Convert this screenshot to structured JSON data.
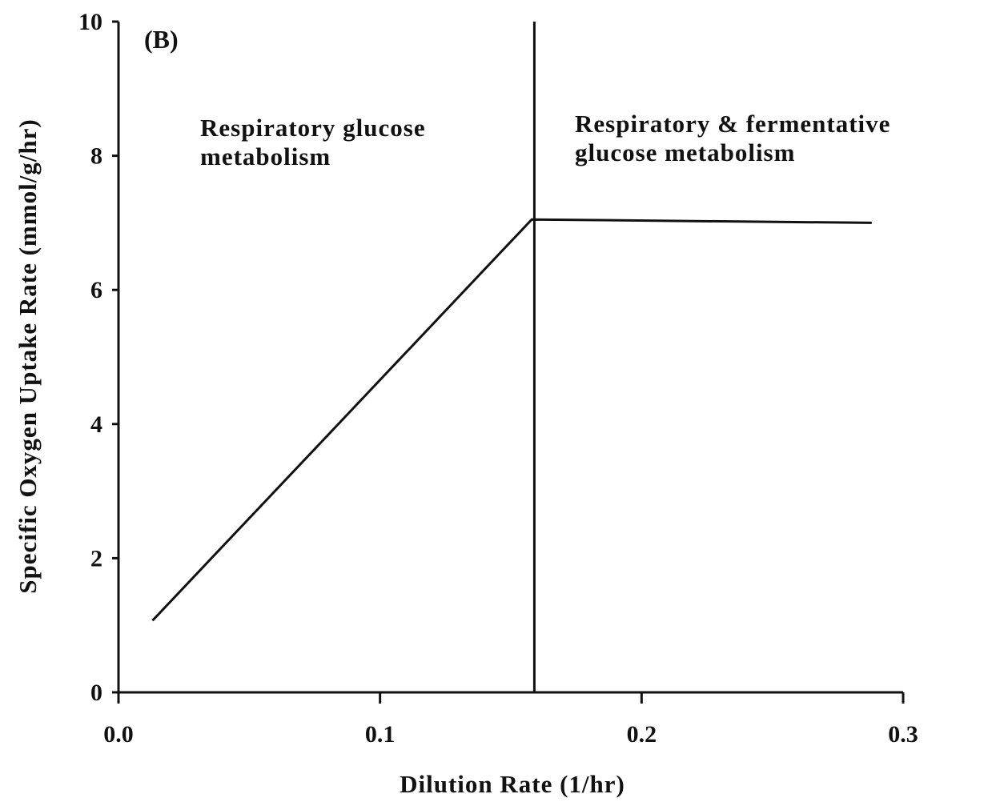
{
  "chart_data": {
    "type": "line",
    "panel_label": "(B)",
    "x_label": "Dilution Rate (1/hr)",
    "y_label": "Specific Oxygen Uptake Rate (mmol/g/hr)",
    "annotations": [
      [
        "Respiratory glucose",
        "metabolism"
      ],
      [
        "Respiratory & fermentative",
        "glucose metabolism"
      ]
    ],
    "x": [
      0.013,
      0.158,
      0.288
    ],
    "series": [
      {
        "color": "#111111",
        "values": [
          1.07,
          7.05,
          7.0
        ]
      }
    ],
    "vlines": [
      0.159
    ],
    "xlim": [
      0,
      0.3
    ],
    "xticks": [
      {
        "value": 0,
        "label": "0.0"
      },
      0.1,
      0.2,
      0.3
    ],
    "ylim": [
      0,
      10
    ],
    "yticks": [
      0,
      2,
      4,
      6,
      8,
      10
    ],
    "grid": false
  }
}
